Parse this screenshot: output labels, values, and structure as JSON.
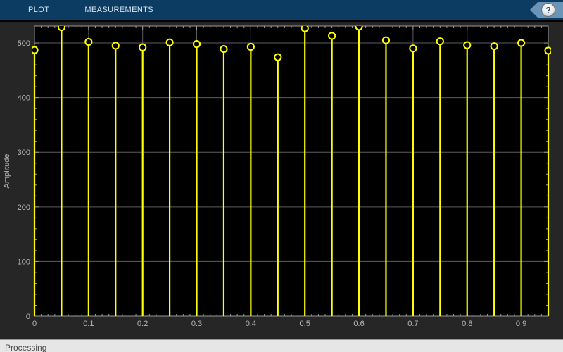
{
  "toolbar": {
    "tabs": [
      {
        "label": "PLOT"
      },
      {
        "label": "MEASUREMENTS"
      }
    ],
    "help_label": "?"
  },
  "status": {
    "text": "Processing"
  },
  "chart_data": {
    "type": "stem",
    "title": "",
    "xlabel": "",
    "ylabel": "Amplitude",
    "x": [
      0,
      0.05,
      0.1,
      0.15,
      0.2,
      0.25,
      0.3,
      0.35,
      0.4,
      0.45,
      0.5,
      0.55,
      0.6,
      0.65,
      0.7,
      0.75,
      0.8,
      0.85,
      0.9,
      0.95
    ],
    "values": [
      487,
      529,
      502,
      495,
      492,
      501,
      498,
      489,
      493,
      474,
      527,
      513,
      530,
      505,
      490,
      503,
      496,
      494,
      500,
      486
    ],
    "xlim": [
      0,
      0.95
    ],
    "ylim": [
      0,
      531
    ],
    "xticks": [
      0,
      0.1,
      0.2,
      0.3,
      0.4,
      0.5,
      0.6,
      0.7,
      0.8,
      0.9
    ],
    "xtick_labels": [
      "0",
      "0.1",
      "0.2",
      "0.3",
      "0.4",
      "0.5",
      "0.6",
      "0.7",
      "0.8",
      "0.9"
    ],
    "yticks": [
      0,
      100,
      200,
      300,
      400,
      500
    ],
    "ytick_labels": [
      "0",
      "100",
      "200",
      "300",
      "400",
      "500"
    ],
    "x_minor_step": 0.0125,
    "y_minor_step": 20,
    "grid": true,
    "legend": null,
    "colors": {
      "stem": "#ffff00",
      "marker_fill": "#000000",
      "plot_bg": "#000000",
      "figure_bg": "#262626",
      "grid": "#5c5c5c",
      "axis": "#9a9a9a",
      "tick_label": "#b9b9b9",
      "toolbar_bg": "#0d3c63",
      "tab_text": "#d5e4f1",
      "help_arrow": "#6a94b8",
      "status_bg": "#e6e6e6",
      "status_text": "#4a4a4a"
    }
  }
}
